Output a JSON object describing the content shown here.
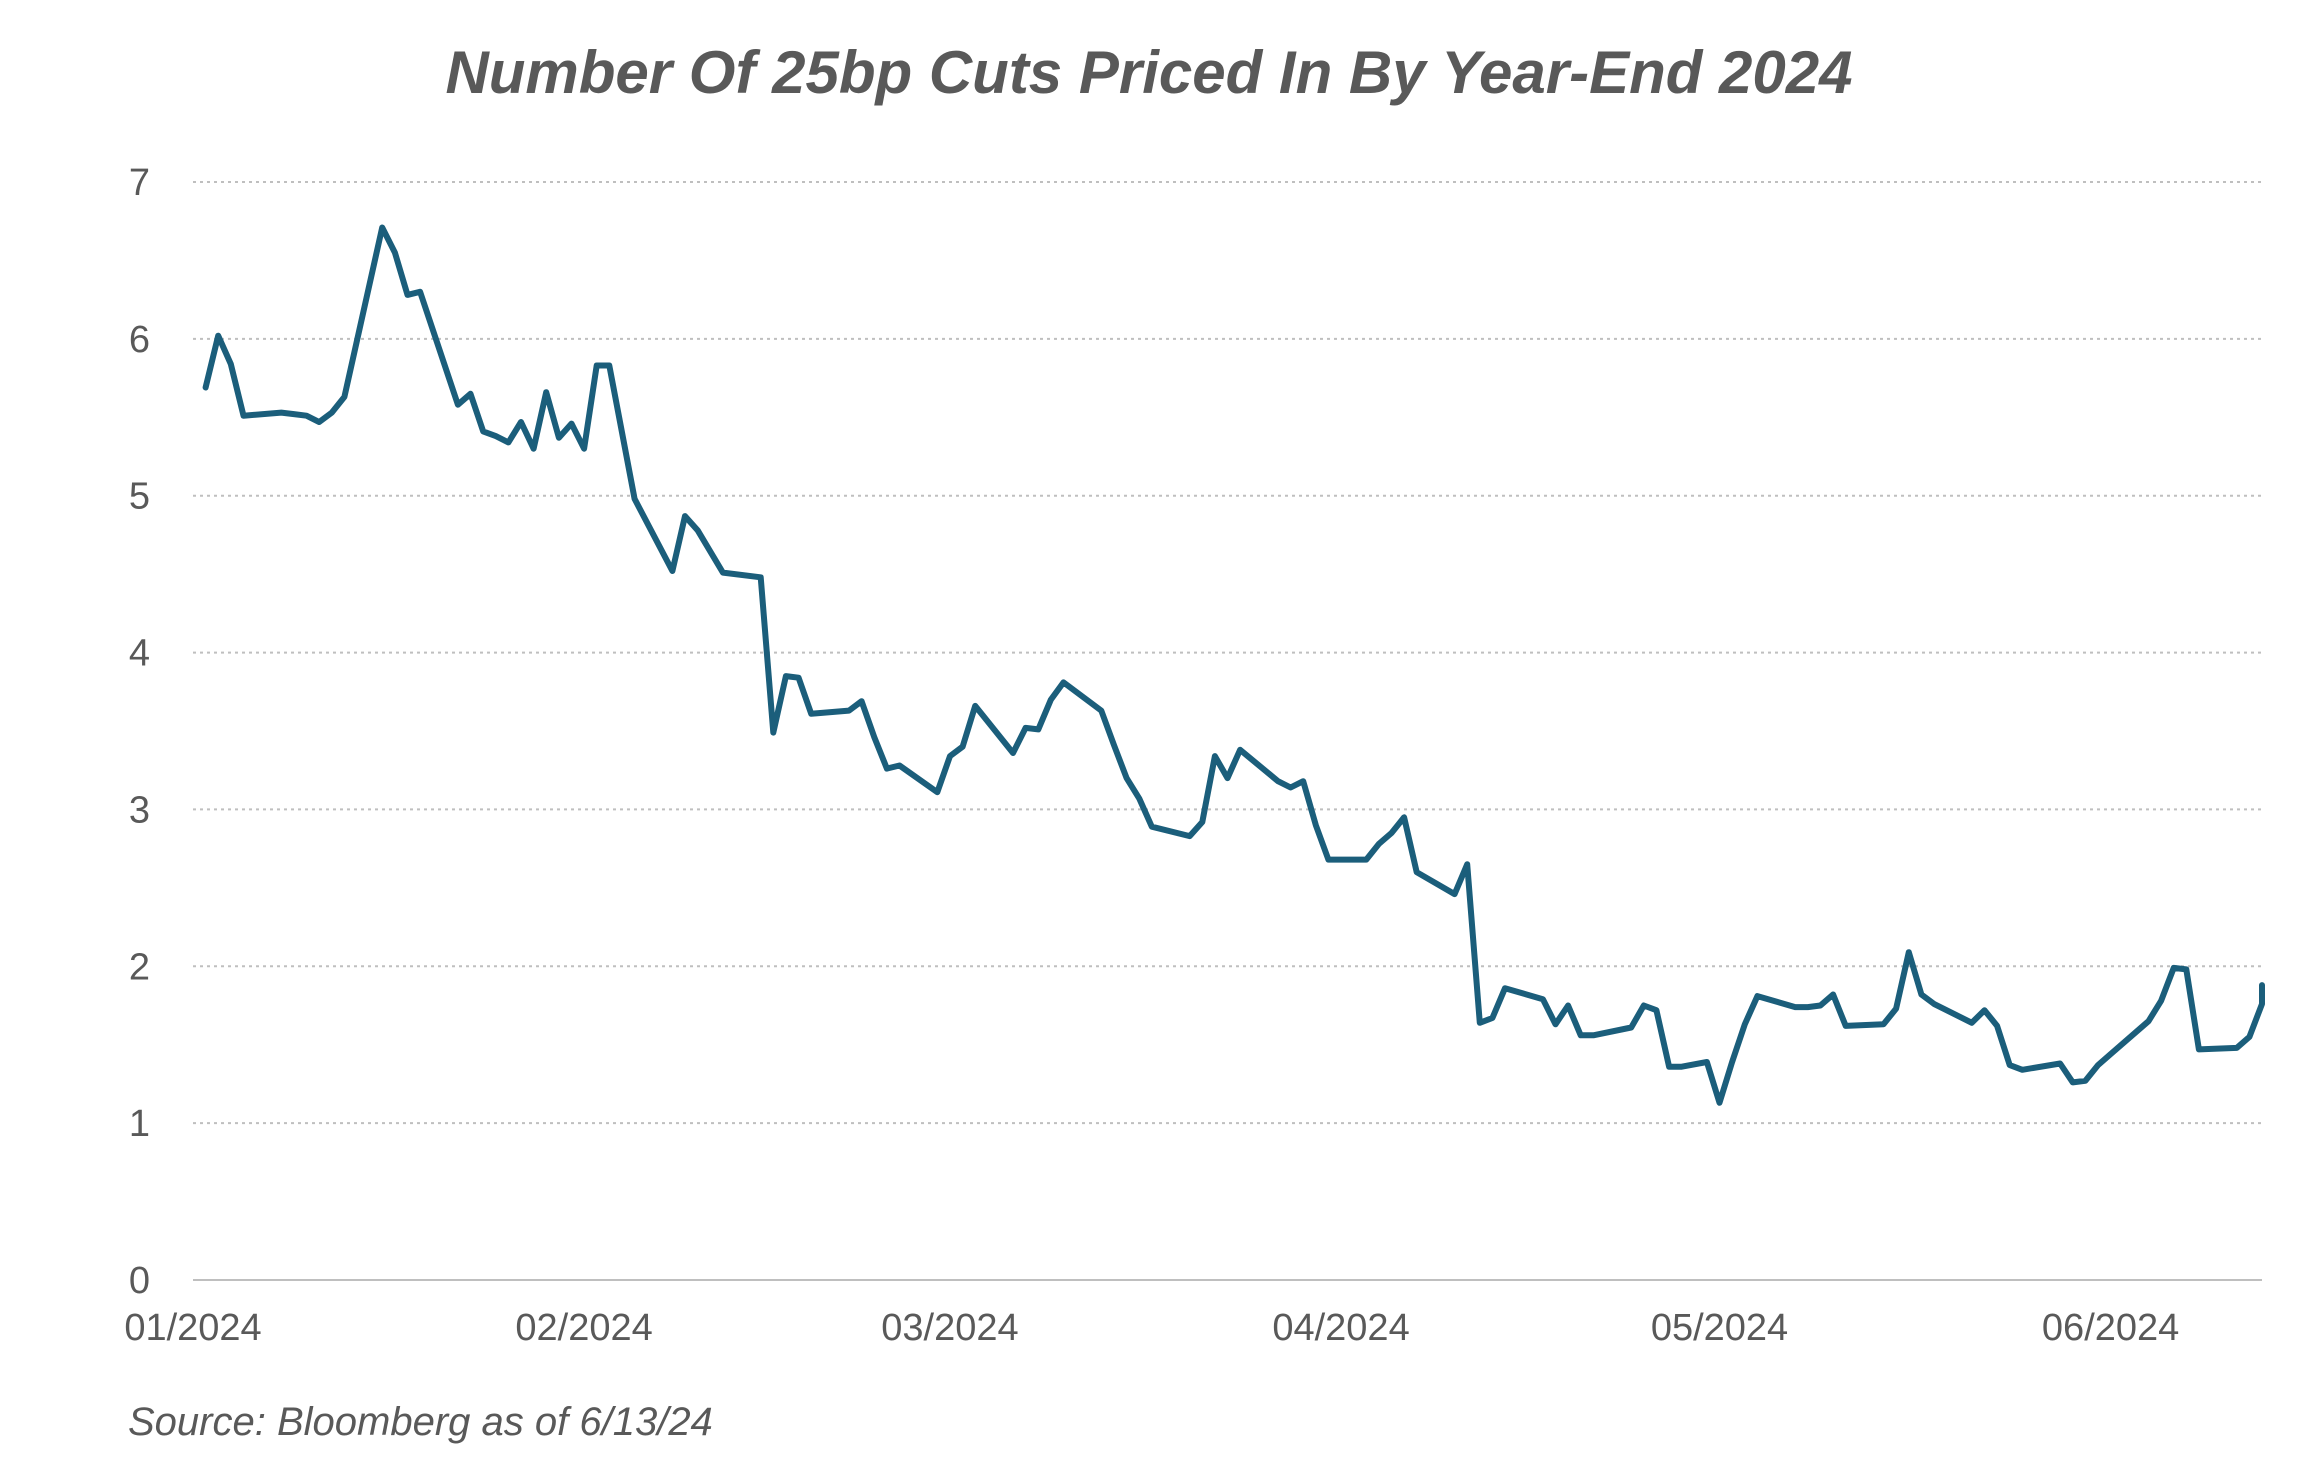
{
  "chart_data": {
    "type": "line",
    "title": "Number Of 25bp Cuts Priced In By Year-End 2024",
    "source": "Source: Bloomberg as of 6/13/24",
    "xlabel": "",
    "ylabel": "",
    "ylim": [
      0,
      7
    ],
    "xlim": [
      "2024-01-01",
      "2024-06-13"
    ],
    "yticks": [
      "0",
      "1",
      "2",
      "3",
      "4",
      "5",
      "6",
      "7"
    ],
    "xticks": [
      {
        "label": "01/2024",
        "date": "2024-01-01"
      },
      {
        "label": "02/2024",
        "date": "2024-02-01"
      },
      {
        "label": "03/2024",
        "date": "2024-03-01"
      },
      {
        "label": "04/2024",
        "date": "2024-04-01"
      },
      {
        "label": "05/2024",
        "date": "2024-05-01"
      },
      {
        "label": "06/2024",
        "date": "2024-06-01"
      }
    ],
    "grid": "horizontal dotted",
    "line_color": "#1b5e7b",
    "series": [
      {
        "points": [
          [
            "2024-01-02",
            5.69
          ],
          [
            "2024-01-03",
            6.02
          ],
          [
            "2024-01-04",
            5.84
          ],
          [
            "2024-01-05",
            5.51
          ],
          [
            "2024-01-08",
            5.53
          ],
          [
            "2024-01-09",
            5.52
          ],
          [
            "2024-01-10",
            5.51
          ],
          [
            "2024-01-11",
            5.47
          ],
          [
            "2024-01-12",
            5.53
          ],
          [
            "2024-01-13",
            5.63
          ],
          [
            "2024-01-16",
            6.71
          ],
          [
            "2024-01-17",
            6.55
          ],
          [
            "2024-01-18",
            6.28
          ],
          [
            "2024-01-19",
            6.3
          ],
          [
            "2024-01-22",
            5.58
          ],
          [
            "2024-01-23",
            5.65
          ],
          [
            "2024-01-24",
            5.41
          ],
          [
            "2024-01-25",
            5.38
          ],
          [
            "2024-01-26",
            5.34
          ],
          [
            "2024-01-27",
            5.47
          ],
          [
            "2024-01-28",
            5.3
          ],
          [
            "2024-01-29",
            5.66
          ],
          [
            "2024-01-30",
            5.37
          ],
          [
            "2024-01-31",
            5.46
          ],
          [
            "2024-02-01",
            5.3
          ],
          [
            "2024-02-02",
            5.83
          ],
          [
            "2024-02-03",
            5.83
          ],
          [
            "2024-02-05",
            4.98
          ],
          [
            "2024-02-08",
            4.52
          ],
          [
            "2024-02-09",
            4.87
          ],
          [
            "2024-02-10",
            4.78
          ],
          [
            "2024-02-12",
            4.51
          ],
          [
            "2024-02-15",
            4.48
          ],
          [
            "2024-02-16",
            3.49
          ],
          [
            "2024-02-17",
            3.85
          ],
          [
            "2024-02-18",
            3.84
          ],
          [
            "2024-02-19",
            3.61
          ],
          [
            "2024-02-22",
            3.63
          ],
          [
            "2024-02-23",
            3.69
          ],
          [
            "2024-02-24",
            3.46
          ],
          [
            "2024-02-25",
            3.26
          ],
          [
            "2024-02-26",
            3.28
          ],
          [
            "2024-02-29",
            3.11
          ],
          [
            "2024-03-01",
            3.34
          ],
          [
            "2024-03-02",
            3.4
          ],
          [
            "2024-03-03",
            3.66
          ],
          [
            "2024-03-06",
            3.36
          ],
          [
            "2024-03-07",
            3.52
          ],
          [
            "2024-03-08",
            3.51
          ],
          [
            "2024-03-09",
            3.7
          ],
          [
            "2024-03-10",
            3.81
          ],
          [
            "2024-03-13",
            3.63
          ],
          [
            "2024-03-14",
            3.41
          ],
          [
            "2024-03-15",
            3.2
          ],
          [
            "2024-03-16",
            3.07
          ],
          [
            "2024-03-17",
            2.89
          ],
          [
            "2024-03-20",
            2.83
          ],
          [
            "2024-03-21",
            2.92
          ],
          [
            "2024-03-22",
            3.34
          ],
          [
            "2024-03-23",
            3.2
          ],
          [
            "2024-03-24",
            3.38
          ],
          [
            "2024-03-27",
            3.18
          ],
          [
            "2024-03-28",
            3.14
          ],
          [
            "2024-03-29",
            3.18
          ],
          [
            "2024-03-30",
            2.9
          ],
          [
            "2024-03-31",
            2.68
          ],
          [
            "2024-04-03",
            2.68
          ],
          [
            "2024-04-04",
            2.78
          ],
          [
            "2024-04-05",
            2.85
          ],
          [
            "2024-04-06",
            2.95
          ],
          [
            "2024-04-07",
            2.6
          ],
          [
            "2024-04-10",
            2.46
          ],
          [
            "2024-04-11",
            2.65
          ],
          [
            "2024-04-12",
            1.64
          ],
          [
            "2024-04-13",
            1.67
          ],
          [
            "2024-04-14",
            1.86
          ],
          [
            "2024-04-17",
            1.79
          ],
          [
            "2024-04-18",
            1.63
          ],
          [
            "2024-04-19",
            1.75
          ],
          [
            "2024-04-20",
            1.56
          ],
          [
            "2024-04-21",
            1.56
          ],
          [
            "2024-04-24",
            1.61
          ],
          [
            "2024-04-25",
            1.75
          ],
          [
            "2024-04-26",
            1.72
          ],
          [
            "2024-04-27",
            1.36
          ],
          [
            "2024-04-28",
            1.36
          ],
          [
            "2024-04-30",
            1.39
          ],
          [
            "2024-05-01",
            1.13
          ],
          [
            "2024-05-02",
            1.39
          ],
          [
            "2024-05-03",
            1.63
          ],
          [
            "2024-05-04",
            1.81
          ],
          [
            "2024-05-07",
            1.74
          ],
          [
            "2024-05-08",
            1.74
          ],
          [
            "2024-05-09",
            1.75
          ],
          [
            "2024-05-10",
            1.82
          ],
          [
            "2024-05-11",
            1.62
          ],
          [
            "2024-05-14",
            1.63
          ],
          [
            "2024-05-15",
            1.73
          ],
          [
            "2024-05-16",
            2.09
          ],
          [
            "2024-05-17",
            1.82
          ],
          [
            "2024-05-18",
            1.76
          ],
          [
            "2024-05-21",
            1.64
          ],
          [
            "2024-05-22",
            1.72
          ],
          [
            "2024-05-23",
            1.62
          ],
          [
            "2024-05-24",
            1.37
          ],
          [
            "2024-05-25",
            1.34
          ],
          [
            "2024-05-28",
            1.38
          ],
          [
            "2024-05-29",
            1.26
          ],
          [
            "2024-05-30",
            1.27
          ],
          [
            "2024-05-31",
            1.37
          ],
          [
            "2024-06-01",
            1.44
          ],
          [
            "2024-06-04",
            1.65
          ],
          [
            "2024-06-05",
            1.78
          ],
          [
            "2024-06-06",
            1.99
          ],
          [
            "2024-06-07",
            1.98
          ],
          [
            "2024-06-08",
            1.47
          ],
          [
            "2024-06-11",
            1.48
          ],
          [
            "2024-06-12",
            1.55
          ],
          [
            "2024-06-13",
            1.76
          ],
          [
            "2024-06-14",
            1.88
          ]
        ]
      }
    ]
  }
}
